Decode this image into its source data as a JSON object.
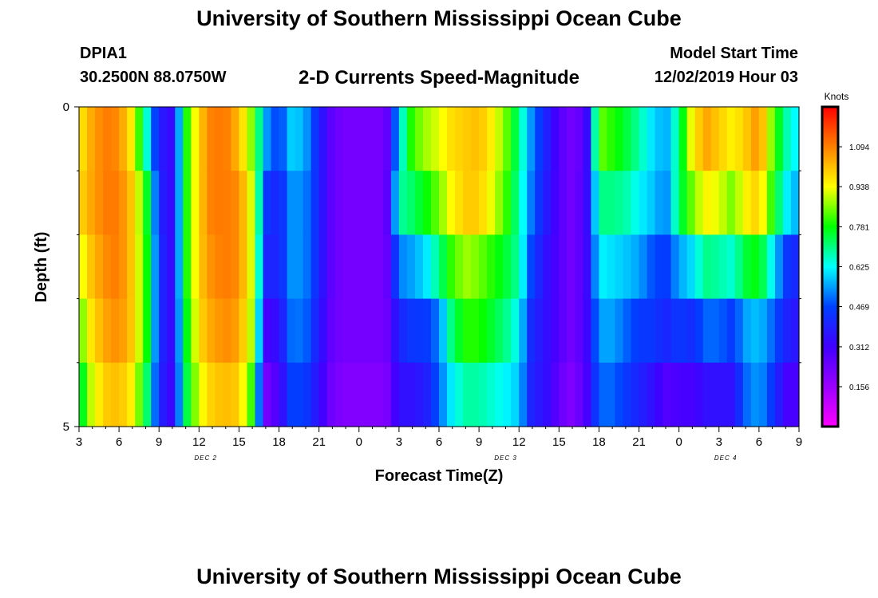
{
  "header": {
    "title": "University of Southern Mississippi Ocean Cube",
    "station_id": "DPIA1",
    "station_coords": "30.2500N 88.0750W",
    "chart_title": "2-D Currents Speed-Magnitude",
    "model_start_label": "Model Start Time",
    "model_start_time": "12/02/2019 Hour 03"
  },
  "footer": {
    "title": "University of Southern Mississippi Ocean Cube"
  },
  "chart_data": {
    "type": "heatmap",
    "title": "2-D Currents Speed-Magnitude",
    "xlabel": "Forecast Time(Z)",
    "ylabel": "Depth (ft)",
    "x_tick_labels": [
      "3",
      "6",
      "9",
      "12",
      "15",
      "18",
      "21",
      "0",
      "3",
      "6",
      "9",
      "12",
      "15",
      "18",
      "21",
      "0",
      "3",
      "6",
      "9"
    ],
    "x_range_hours": [
      0,
      54
    ],
    "day_labels": [
      {
        "label": "DEC 2",
        "at_hour": 9.5
      },
      {
        "label": "DEC 3",
        "at_hour": 32
      },
      {
        "label": "DEC 4",
        "at_hour": 48.5
      }
    ],
    "y_tick_labels": [
      "0",
      "5"
    ],
    "y_range": [
      0,
      5
    ],
    "depth_layers": 5,
    "colorbar": {
      "title": "Knots",
      "ticks": [
        "1.094",
        "0.938",
        "0.781",
        "0.625",
        "0.469",
        "0.312",
        "0.156"
      ],
      "range": [
        0.0,
        1.25
      ]
    },
    "key_hours": [
      0,
      1,
      2,
      3,
      4,
      5,
      6,
      7,
      8,
      9,
      10,
      11,
      12,
      13,
      14,
      15,
      16,
      17,
      18,
      19,
      20,
      21,
      22,
      23,
      24,
      25,
      26,
      27,
      28,
      29,
      30,
      31,
      32,
      33,
      34,
      35,
      36,
      37,
      38,
      39,
      40,
      41,
      42,
      43,
      44,
      45,
      46,
      47,
      48,
      49,
      50,
      51,
      52,
      53,
      54
    ],
    "speed_profiles": [
      [
        0.95,
        0.98,
        0.9,
        0.82,
        0.7
      ],
      [
        1.05,
        1.05,
        1.02,
        0.98,
        0.92
      ],
      [
        1.1,
        1.1,
        1.08,
        1.05,
        1.0
      ],
      [
        1.08,
        1.1,
        1.1,
        1.08,
        1.02
      ],
      [
        0.95,
        1.0,
        1.0,
        1.0,
        0.95
      ],
      [
        0.68,
        0.8,
        0.82,
        0.82,
        0.75
      ],
      [
        0.38,
        0.4,
        0.42,
        0.42,
        0.4
      ],
      [
        0.33,
        0.33,
        0.33,
        0.33,
        0.32
      ],
      [
        0.78,
        0.78,
        0.78,
        0.75,
        0.72
      ],
      [
        1.0,
        1.0,
        1.0,
        0.98,
        0.92
      ],
      [
        1.1,
        1.1,
        1.08,
        1.05,
        1.0
      ],
      [
        1.1,
        1.1,
        1.1,
        1.08,
        1.02
      ],
      [
        1.02,
        1.08,
        1.08,
        1.05,
        1.0
      ],
      [
        0.85,
        0.9,
        0.9,
        0.88,
        0.8
      ],
      [
        0.55,
        0.45,
        0.4,
        0.3,
        0.22
      ],
      [
        0.45,
        0.4,
        0.4,
        0.35,
        0.3
      ],
      [
        0.6,
        0.55,
        0.55,
        0.52,
        0.48
      ],
      [
        0.55,
        0.52,
        0.52,
        0.5,
        0.45
      ],
      [
        0.4,
        0.4,
        0.4,
        0.38,
        0.35
      ],
      [
        0.25,
        0.25,
        0.25,
        0.24,
        0.22
      ],
      [
        0.22,
        0.22,
        0.22,
        0.22,
        0.2
      ],
      [
        0.22,
        0.22,
        0.22,
        0.22,
        0.2
      ],
      [
        0.22,
        0.22,
        0.22,
        0.22,
        0.2
      ],
      [
        0.22,
        0.22,
        0.22,
        0.22,
        0.2
      ],
      [
        0.6,
        0.68,
        0.52,
        0.4,
        0.35
      ],
      [
        0.82,
        0.72,
        0.55,
        0.45,
        0.35
      ],
      [
        0.88,
        0.78,
        0.6,
        0.45,
        0.38
      ],
      [
        0.92,
        0.85,
        0.7,
        0.52,
        0.5
      ],
      [
        0.98,
        0.95,
        0.82,
        0.72,
        0.62
      ],
      [
        1.0,
        1.0,
        0.88,
        0.8,
        0.68
      ],
      [
        1.02,
        1.0,
        0.85,
        0.8,
        0.68
      ],
      [
        0.95,
        0.92,
        0.8,
        0.75,
        0.65
      ],
      [
        0.85,
        0.82,
        0.75,
        0.7,
        0.62
      ],
      [
        0.7,
        0.68,
        0.68,
        0.62,
        0.58
      ],
      [
        0.52,
        0.5,
        0.45,
        0.4,
        0.38
      ],
      [
        0.4,
        0.38,
        0.35,
        0.35,
        0.35
      ],
      [
        0.28,
        0.28,
        0.28,
        0.28,
        0.25
      ],
      [
        0.22,
        0.22,
        0.22,
        0.22,
        0.2
      ],
      [
        0.28,
        0.3,
        0.3,
        0.3,
        0.28
      ],
      [
        0.85,
        0.7,
        0.62,
        0.55,
        0.5
      ],
      [
        0.8,
        0.7,
        0.6,
        0.55,
        0.5
      ],
      [
        0.75,
        0.68,
        0.58,
        0.5,
        0.45
      ],
      [
        0.68,
        0.62,
        0.55,
        0.45,
        0.4
      ],
      [
        0.6,
        0.58,
        0.48,
        0.45,
        0.35
      ],
      [
        0.55,
        0.52,
        0.45,
        0.4,
        0.28
      ],
      [
        0.7,
        0.72,
        0.55,
        0.45,
        0.3
      ],
      [
        0.95,
        0.85,
        0.6,
        0.42,
        0.3
      ],
      [
        1.05,
        0.95,
        0.7,
        0.5,
        0.35
      ],
      [
        1.0,
        0.92,
        0.68,
        0.5,
        0.35
      ],
      [
        0.95,
        0.85,
        0.65,
        0.45,
        0.35
      ],
      [
        1.0,
        0.95,
        0.75,
        0.55,
        0.5
      ],
      [
        1.08,
        1.0,
        0.78,
        0.58,
        0.55
      ],
      [
        0.85,
        0.8,
        0.62,
        0.5,
        0.45
      ],
      [
        0.68,
        0.62,
        0.45,
        0.4,
        0.3
      ],
      [
        0.6,
        0.55,
        0.4,
        0.35,
        0.3
      ]
    ]
  }
}
